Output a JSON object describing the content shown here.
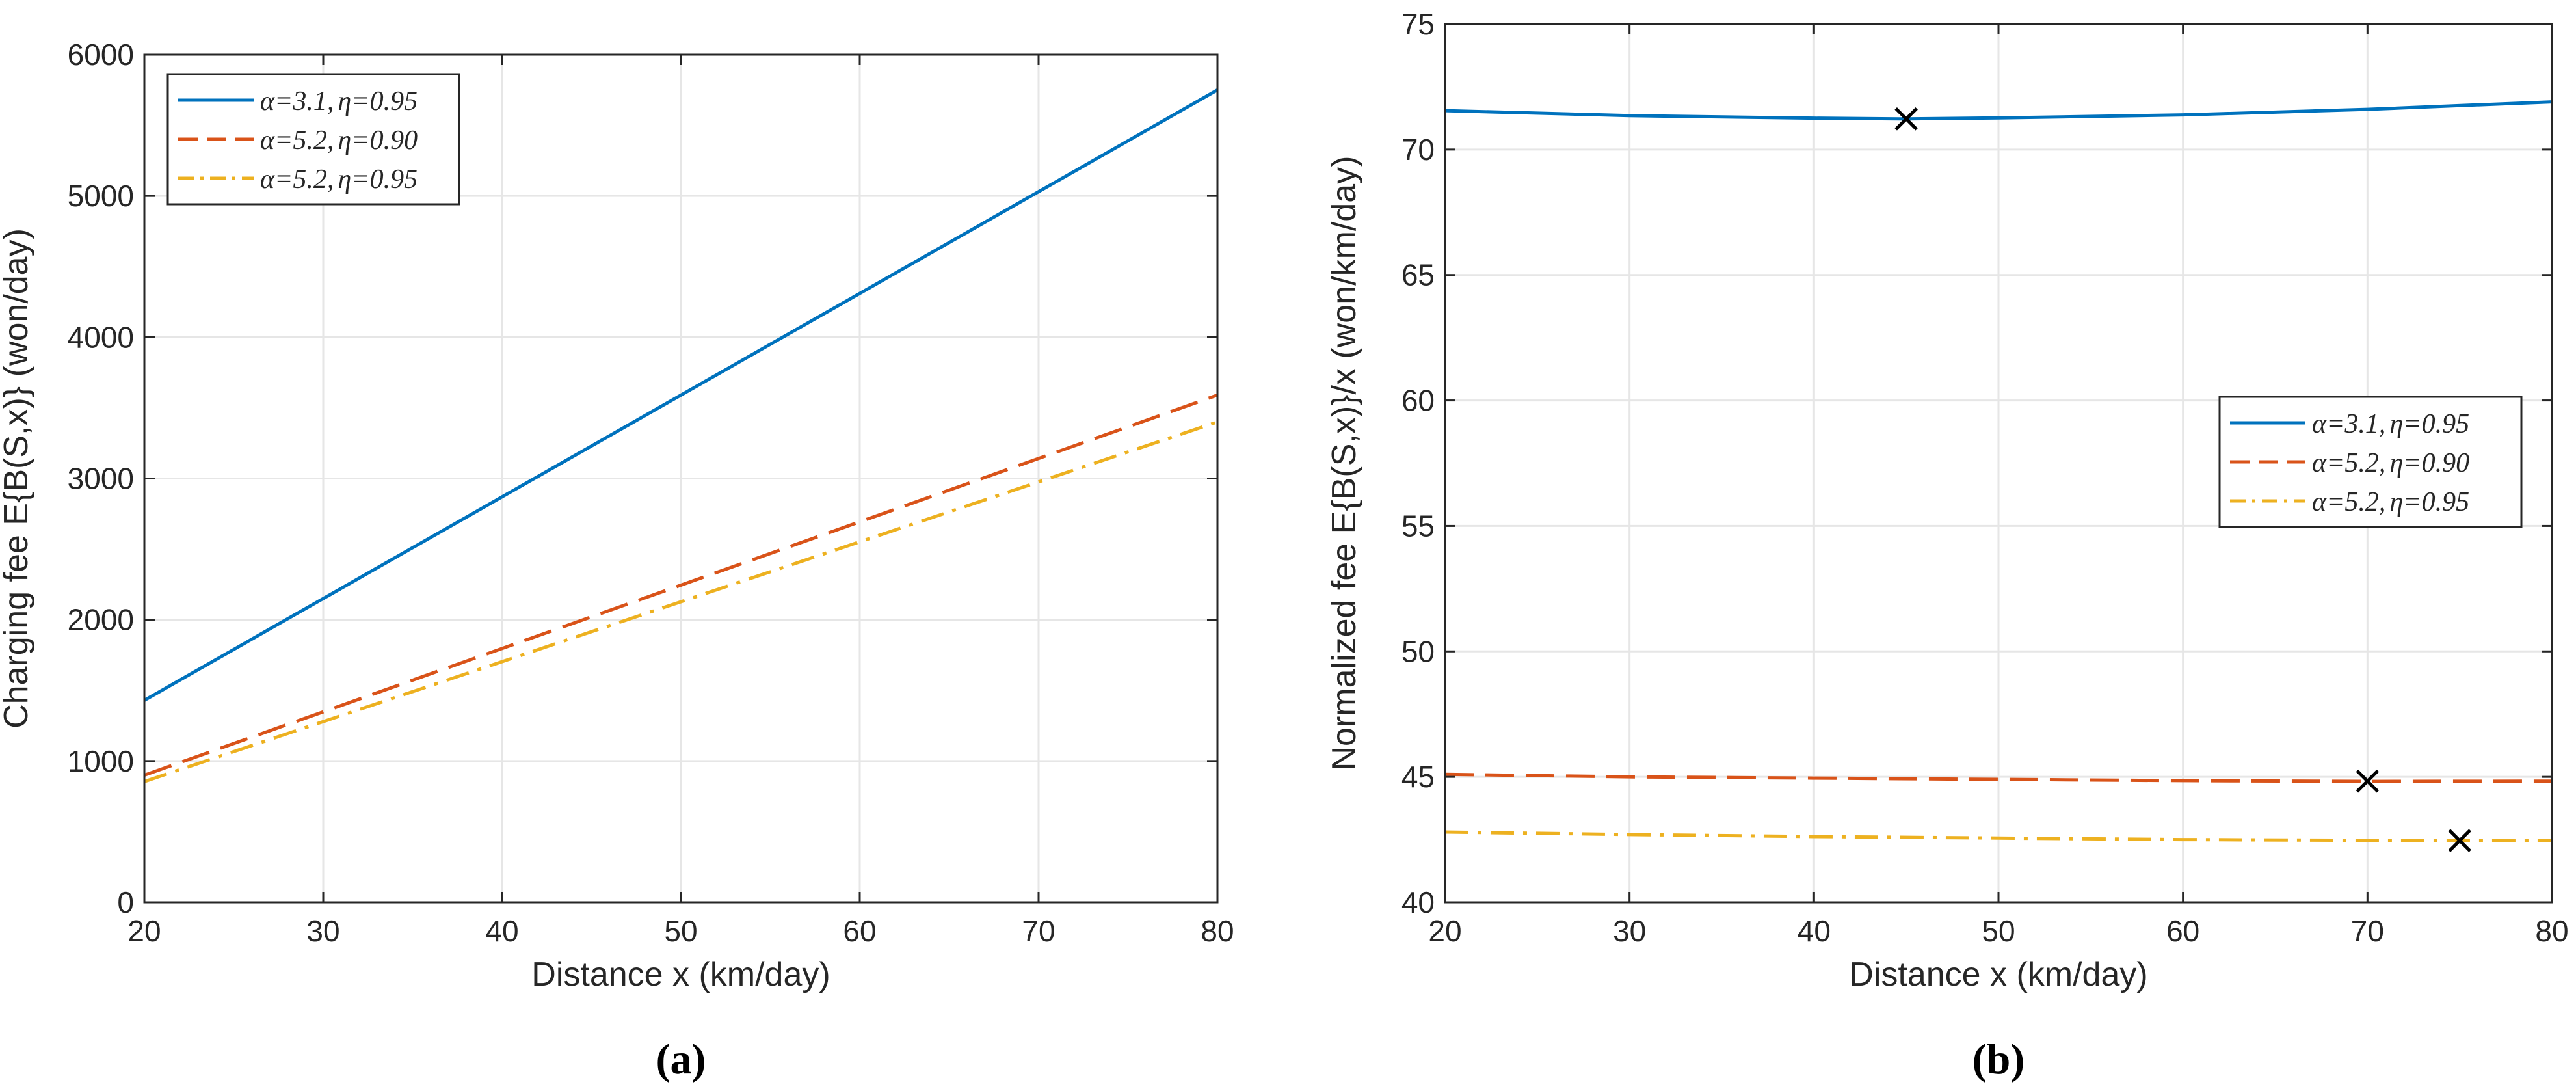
{
  "colors": {
    "series_blue": "#0072BD",
    "series_red": "#D95319",
    "series_yellow": "#EDB120",
    "grid": "#e6e6e6",
    "axis": "#262626",
    "marker": "#000000"
  },
  "chart_data": [
    {
      "type": "line",
      "panel_label": "(a)",
      "xlabel": "Distance x (km/day)",
      "ylabel": "Charging fee E{B(S,x)} (won/day)",
      "xlim": [
        20,
        80
      ],
      "ylim": [
        0,
        6000
      ],
      "xticks": [
        20,
        30,
        40,
        50,
        60,
        70,
        80
      ],
      "yticks": [
        0,
        1000,
        2000,
        3000,
        4000,
        5000,
        6000
      ],
      "grid": true,
      "legend_position": "top-left",
      "series": [
        {
          "name_alpha": "α=3.1,",
          "name_eta": "η=0.95",
          "style": "solid",
          "color": "#0072BD",
          "x": [
            20,
            80
          ],
          "y": [
            1430,
            5750
          ]
        },
        {
          "name_alpha": "α=5.2,",
          "name_eta": "η=0.90",
          "style": "dashed",
          "color": "#D95319",
          "x": [
            20,
            80
          ],
          "y": [
            900,
            3590
          ]
        },
        {
          "name_alpha": "α=5.2,",
          "name_eta": "η=0.95",
          "style": "dashdot",
          "color": "#EDB120",
          "x": [
            20,
            80
          ],
          "y": [
            855,
            3400
          ]
        }
      ],
      "markers": []
    },
    {
      "type": "line",
      "panel_label": "(b)",
      "xlabel": "Distance x (km/day)",
      "ylabel": "Normalized fee E{B(S,x)}/x (won/km/day)",
      "xlim": [
        20,
        80
      ],
      "ylim": [
        40,
        75
      ],
      "xticks": [
        20,
        30,
        40,
        50,
        60,
        70,
        80
      ],
      "yticks": [
        40,
        45,
        50,
        55,
        60,
        65,
        70,
        75
      ],
      "grid": true,
      "legend_position": "right-middle",
      "series": [
        {
          "name_alpha": "α=3.1,",
          "name_eta": "η=0.95",
          "style": "solid",
          "color": "#0072BD",
          "x": [
            20,
            30,
            40,
            45,
            50,
            60,
            70,
            80
          ],
          "y": [
            71.55,
            71.35,
            71.25,
            71.22,
            71.26,
            71.38,
            71.6,
            71.9
          ]
        },
        {
          "name_alpha": "α=5.2,",
          "name_eta": "η=0.90",
          "style": "dashed",
          "color": "#D95319",
          "x": [
            20,
            30,
            40,
            50,
            60,
            70,
            80
          ],
          "y": [
            45.1,
            45.0,
            44.95,
            44.9,
            44.85,
            44.82,
            44.83
          ]
        },
        {
          "name_alpha": "α=5.2,",
          "name_eta": "η=0.95",
          "style": "dashdot",
          "color": "#EDB120",
          "x": [
            20,
            30,
            40,
            50,
            60,
            70,
            75,
            80
          ],
          "y": [
            42.8,
            42.7,
            42.62,
            42.56,
            42.5,
            42.47,
            42.46,
            42.47
          ]
        }
      ],
      "markers": [
        {
          "x": 45,
          "y": 71.22
        },
        {
          "x": 70,
          "y": 44.83
        },
        {
          "x": 75,
          "y": 42.46
        }
      ]
    }
  ]
}
